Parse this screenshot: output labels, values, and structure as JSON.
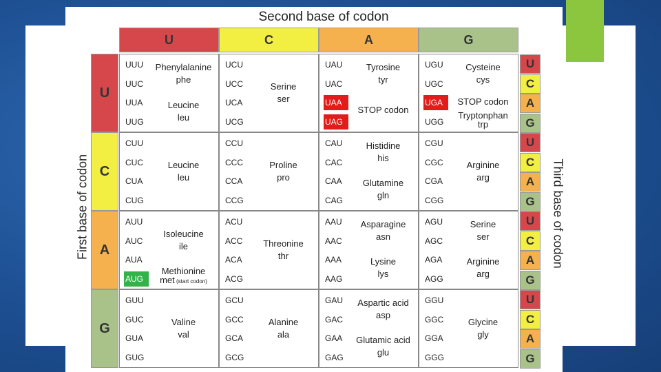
{
  "title": "Second base of codon",
  "first_base_label": "First base of codon",
  "third_base_label": "Third base of codon",
  "columns": [
    "U",
    "C",
    "A",
    "G"
  ],
  "rows": [
    "U",
    "C",
    "A",
    "G"
  ],
  "third_bases": [
    "U",
    "C",
    "A",
    "G"
  ],
  "colors": {
    "U": "#d6474c",
    "C": "#f2ee42",
    "A": "#f4b14e",
    "G": "#a9c28a",
    "stop": "#e21b1b",
    "start": "#33b24a"
  },
  "cells": {
    "UU": {
      "codons": [
        "UUU",
        "UUC",
        "UUA",
        "UUG"
      ],
      "groups": [
        {
          "name": "Phenylalanine",
          "abbr": "phe"
        },
        {
          "name": "Leucine",
          "abbr": "leu"
        }
      ]
    },
    "UC": {
      "codons": [
        "UCU",
        "UCC",
        "UCA",
        "UCG"
      ],
      "groups": [
        {
          "name": "Serine",
          "abbr": "ser"
        }
      ]
    },
    "UA": {
      "codons": [
        "UAU",
        "UAC",
        "UAA",
        "UAG"
      ],
      "groups": [
        {
          "name": "Tyrosine",
          "abbr": "tyr"
        },
        {
          "name": "STOP codon",
          "abbr": ""
        }
      ]
    },
    "UG": {
      "codons": [
        "UGU",
        "UGC",
        "UGA",
        "UGG"
      ],
      "groups": [
        {
          "name": "Cysteine",
          "abbr": "cys"
        },
        {
          "name": "STOP codon",
          "abbr": ""
        },
        {
          "name": "Tryptonphan",
          "abbr": "trp"
        }
      ]
    },
    "CU": {
      "codons": [
        "CUU",
        "CUC",
        "CUA",
        "CUG"
      ],
      "groups": [
        {
          "name": "Leucine",
          "abbr": "leu"
        }
      ]
    },
    "CC": {
      "codons": [
        "CCU",
        "CCC",
        "CCA",
        "CCG"
      ],
      "groups": [
        {
          "name": "Proline",
          "abbr": "pro"
        }
      ]
    },
    "CA": {
      "codons": [
        "CAU",
        "CAC",
        "CAA",
        "CAG"
      ],
      "groups": [
        {
          "name": "Histidine",
          "abbr": "his"
        },
        {
          "name": "Glutamine",
          "abbr": "gln"
        }
      ]
    },
    "CG": {
      "codons": [
        "CGU",
        "CGC",
        "CGA",
        "CGG"
      ],
      "groups": [
        {
          "name": "Arginine",
          "abbr": "arg"
        }
      ]
    },
    "AU": {
      "codons": [
        "AUU",
        "AUC",
        "AUA",
        "AUG"
      ],
      "groups": [
        {
          "name": "Isoleucine",
          "abbr": "ile"
        },
        {
          "name": "Methionine",
          "abbr": "met"
        }
      ],
      "start_note": "(start codon)"
    },
    "AC": {
      "codons": [
        "ACU",
        "ACC",
        "ACA",
        "ACG"
      ],
      "groups": [
        {
          "name": "Threonine",
          "abbr": "thr"
        }
      ]
    },
    "AA": {
      "codons": [
        "AAU",
        "AAC",
        "AAA",
        "AAG"
      ],
      "groups": [
        {
          "name": "Asparagine",
          "abbr": "asn"
        },
        {
          "name": "Lysine",
          "abbr": "lys"
        }
      ]
    },
    "AG": {
      "codons": [
        "AGU",
        "AGC",
        "AGA",
        "AGG"
      ],
      "groups": [
        {
          "name": "Serine",
          "abbr": "ser"
        },
        {
          "name": "Arginine",
          "abbr": "arg"
        }
      ]
    },
    "GU": {
      "codons": [
        "GUU",
        "GUC",
        "GUA",
        "GUG"
      ],
      "groups": [
        {
          "name": "Valine",
          "abbr": "val"
        }
      ]
    },
    "GC": {
      "codons": [
        "GCU",
        "GCC",
        "GCA",
        "GCG"
      ],
      "groups": [
        {
          "name": "Alanine",
          "abbr": "ala"
        }
      ]
    },
    "GA": {
      "codons": [
        "GAU",
        "GAC",
        "GAA",
        "GAG"
      ],
      "groups": [
        {
          "name": "Aspartic acid",
          "abbr": "asp"
        },
        {
          "name": "Glutamic acid",
          "abbr": "glu"
        }
      ]
    },
    "GG": {
      "codons": [
        "GGU",
        "GGC",
        "GGA",
        "GGG"
      ],
      "groups": [
        {
          "name": "Glycine",
          "abbr": "gly"
        }
      ]
    }
  }
}
